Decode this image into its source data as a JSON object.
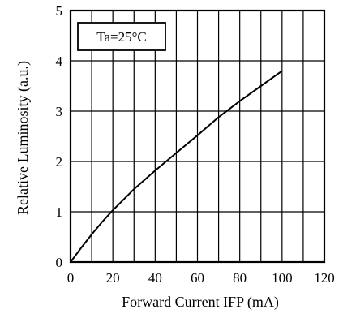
{
  "chart_data": {
    "type": "line",
    "title": "",
    "xlabel": "Forward Current  IFP (mA)",
    "ylabel": "Relative Luminosity (a.u.)",
    "xlim": [
      0,
      120
    ],
    "ylim": [
      0,
      5
    ],
    "x_ticks": [
      "0",
      "20",
      "40",
      "60",
      "80",
      "100",
      "120"
    ],
    "y_ticks": [
      "0",
      "1",
      "2",
      "3",
      "4",
      "5"
    ],
    "x_grid_step": 10,
    "y_grid_step": 1,
    "grid": true,
    "annotation": "Ta=25°C",
    "series": [
      {
        "x": [
          0,
          5,
          10,
          15,
          20,
          30,
          40,
          50,
          60,
          70,
          80,
          90,
          100
        ],
        "y": [
          0,
          0.28,
          0.55,
          0.8,
          1.03,
          1.45,
          1.82,
          2.17,
          2.52,
          2.88,
          3.2,
          3.5,
          3.8
        ]
      }
    ]
  }
}
